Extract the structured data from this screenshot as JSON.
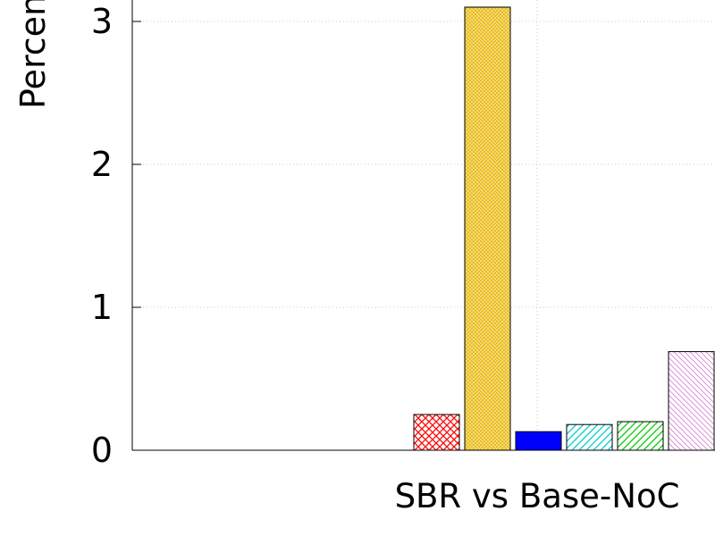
{
  "chart_data": {
    "type": "bar",
    "ylabel": "Percent",
    "ylim": [
      0,
      3.1
    ],
    "yticks": [
      0,
      1,
      2,
      3
    ],
    "grid": true,
    "categories": [
      "SBR vs Base-NoC"
    ],
    "series": [
      {
        "values": [
          0.25
        ],
        "color": "#ff0000",
        "pattern": "crosshatch"
      },
      {
        "values": [
          3.1
        ],
        "color": "#e6b800",
        "pattern": "fine-crosshatch"
      },
      {
        "values": [
          0.13
        ],
        "color": "#0000ff",
        "pattern": "solid"
      },
      {
        "values": [
          0.18
        ],
        "color": "#00cccc",
        "pattern": "diagonal"
      },
      {
        "values": [
          0.2
        ],
        "color": "#00cc00",
        "pattern": "diagonal"
      },
      {
        "values": [
          0.69
        ],
        "color": "#cc66cc",
        "pattern": "back-diagonal"
      }
    ]
  }
}
